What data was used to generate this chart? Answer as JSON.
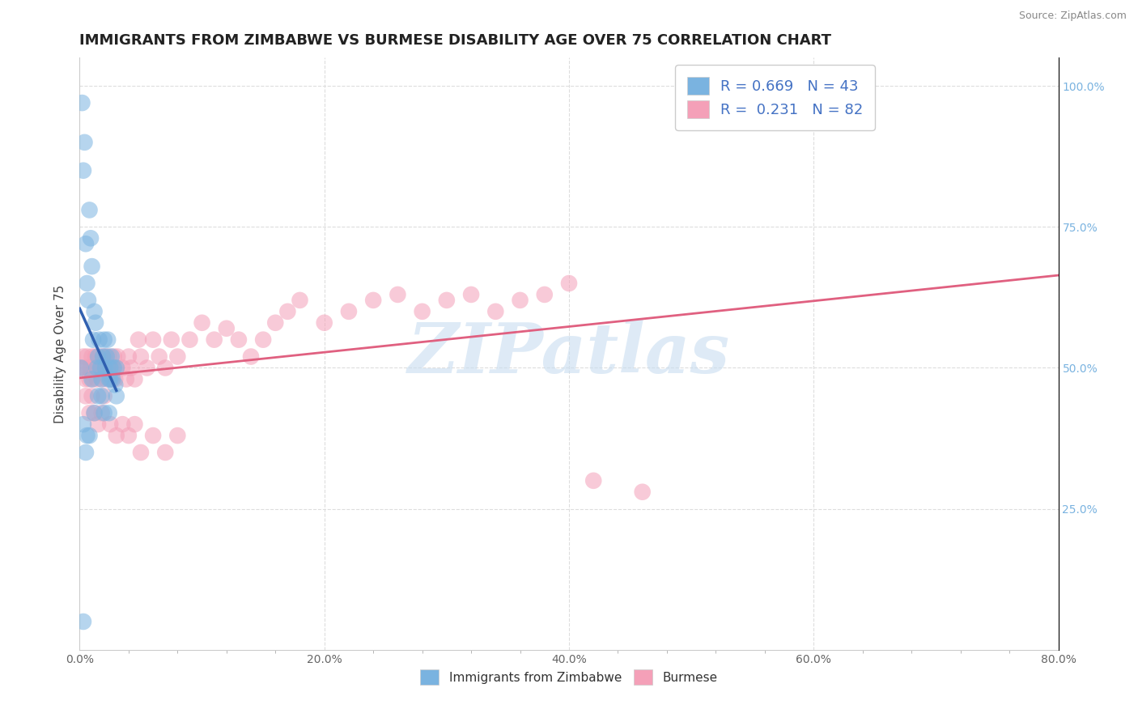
{
  "title": "IMMIGRANTS FROM ZIMBABWE VS BURMESE DISABILITY AGE OVER 75 CORRELATION CHART",
  "source": "Source: ZipAtlas.com",
  "ylabel": "Disability Age Over 75",
  "xlim": [
    0.0,
    0.8
  ],
  "ylim": [
    0.0,
    1.05
  ],
  "xtick_labels": [
    "0.0%",
    "",
    "",
    "",
    "",
    "20.0%",
    "",
    "",
    "",
    "",
    "40.0%",
    "",
    "",
    "",
    "",
    "60.0%",
    "",
    "",
    "",
    "",
    "80.0%"
  ],
  "xtick_vals": [
    0.0,
    0.04,
    0.08,
    0.12,
    0.16,
    0.2,
    0.24,
    0.28,
    0.32,
    0.36,
    0.4,
    0.44,
    0.48,
    0.52,
    0.56,
    0.6,
    0.64,
    0.68,
    0.72,
    0.76,
    0.8
  ],
  "ytick_vals_right": [
    0.25,
    0.5,
    0.75,
    1.0
  ],
  "ytick_labels_right": [
    "25.0%",
    "50.0%",
    "75.0%",
    "100.0%"
  ],
  "legend_label_blue": "R = 0.669   N = 43",
  "legend_label_pink": "R =  0.231   N = 82",
  "legend_bottom": [
    "Immigrants from Zimbabwe",
    "Burmese"
  ],
  "watermark": "ZIPatlas",
  "watermark_color": "#c8ddf0",
  "title_fontsize": 13,
  "axis_label_fontsize": 11,
  "tick_fontsize": 10,
  "blue_color": "#7ab3e0",
  "pink_color": "#f4a0b8",
  "blue_line_color": "#3060b0",
  "pink_line_color": "#e06080",
  "blue_scatter_x": [
    0.001,
    0.002,
    0.003,
    0.004,
    0.005,
    0.006,
    0.007,
    0.008,
    0.009,
    0.01,
    0.011,
    0.012,
    0.013,
    0.014,
    0.015,
    0.016,
    0.017,
    0.018,
    0.019,
    0.02,
    0.021,
    0.022,
    0.023,
    0.024,
    0.025,
    0.026,
    0.027,
    0.028,
    0.029,
    0.03,
    0.003,
    0.006,
    0.012,
    0.018,
    0.024,
    0.03,
    0.01,
    0.015,
    0.02,
    0.025,
    0.005,
    0.008,
    0.003
  ],
  "blue_scatter_y": [
    0.5,
    0.97,
    0.85,
    0.9,
    0.72,
    0.65,
    0.62,
    0.78,
    0.73,
    0.68,
    0.55,
    0.6,
    0.58,
    0.5,
    0.52,
    0.55,
    0.5,
    0.48,
    0.52,
    0.55,
    0.5,
    0.52,
    0.55,
    0.48,
    0.5,
    0.52,
    0.48,
    0.5,
    0.47,
    0.5,
    0.4,
    0.38,
    0.42,
    0.45,
    0.42,
    0.45,
    0.48,
    0.45,
    0.42,
    0.48,
    0.35,
    0.38,
    0.05
  ],
  "pink_scatter_x": [
    0.002,
    0.003,
    0.004,
    0.005,
    0.006,
    0.007,
    0.008,
    0.009,
    0.01,
    0.011,
    0.012,
    0.013,
    0.014,
    0.015,
    0.016,
    0.017,
    0.018,
    0.019,
    0.02,
    0.021,
    0.022,
    0.023,
    0.024,
    0.025,
    0.026,
    0.027,
    0.028,
    0.029,
    0.03,
    0.031,
    0.035,
    0.038,
    0.04,
    0.042,
    0.045,
    0.048,
    0.05,
    0.055,
    0.06,
    0.065,
    0.07,
    0.075,
    0.08,
    0.09,
    0.1,
    0.11,
    0.12,
    0.13,
    0.14,
    0.15,
    0.16,
    0.17,
    0.18,
    0.2,
    0.22,
    0.24,
    0.26,
    0.28,
    0.3,
    0.32,
    0.34,
    0.36,
    0.38,
    0.4,
    0.005,
    0.008,
    0.01,
    0.012,
    0.015,
    0.018,
    0.02,
    0.025,
    0.03,
    0.035,
    0.04,
    0.045,
    0.05,
    0.06,
    0.07,
    0.08,
    0.42,
    0.46
  ],
  "pink_scatter_y": [
    0.5,
    0.52,
    0.5,
    0.48,
    0.52,
    0.5,
    0.48,
    0.5,
    0.52,
    0.48,
    0.5,
    0.52,
    0.48,
    0.5,
    0.52,
    0.5,
    0.48,
    0.52,
    0.5,
    0.52,
    0.48,
    0.5,
    0.52,
    0.5,
    0.48,
    0.5,
    0.52,
    0.48,
    0.5,
    0.52,
    0.5,
    0.48,
    0.52,
    0.5,
    0.48,
    0.55,
    0.52,
    0.5,
    0.55,
    0.52,
    0.5,
    0.55,
    0.52,
    0.55,
    0.58,
    0.55,
    0.57,
    0.55,
    0.52,
    0.55,
    0.58,
    0.6,
    0.62,
    0.58,
    0.6,
    0.62,
    0.63,
    0.6,
    0.62,
    0.63,
    0.6,
    0.62,
    0.63,
    0.65,
    0.45,
    0.42,
    0.45,
    0.42,
    0.4,
    0.42,
    0.45,
    0.4,
    0.38,
    0.4,
    0.38,
    0.4,
    0.35,
    0.38,
    0.35,
    0.38,
    0.3,
    0.28
  ]
}
